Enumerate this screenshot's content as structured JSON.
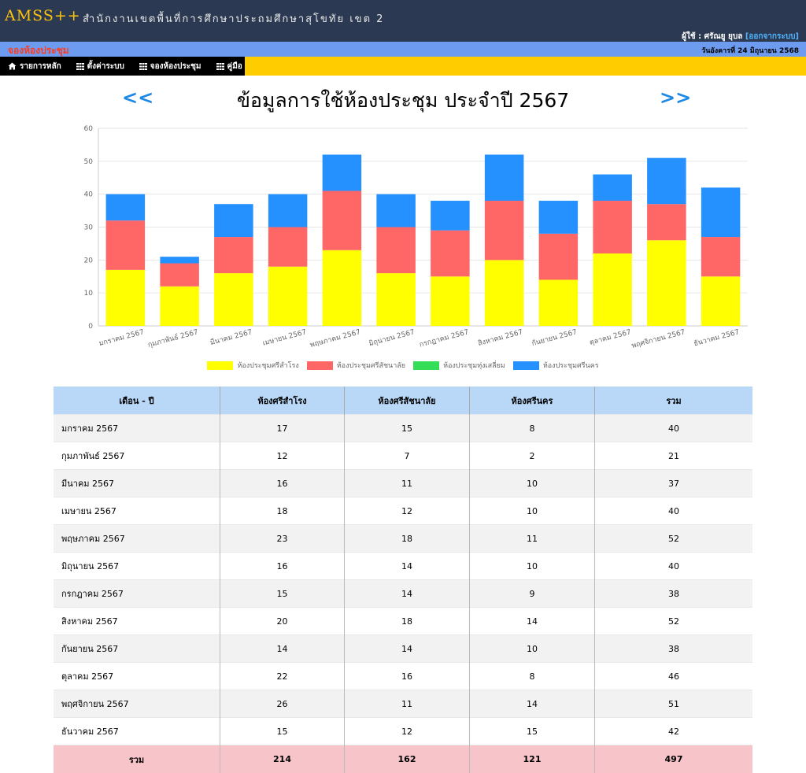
{
  "header": {
    "brand": "AMSS++",
    "org_name": "สำนักงานเขตพื้นที่การศึกษาประถมศึกษาสุโขทัย เขต 2",
    "user_label": "ผู้ใช้ : ศรัณยู ยุบล",
    "logout_label": "[ออกจากระบบ]",
    "module_title": "จองห้องประชุม",
    "date_text": "วันอังคารที่ 24 มิถุนายน 2568"
  },
  "nav": [
    {
      "label": "รายการหลัก",
      "icon": "home-icon"
    },
    {
      "label": "ตั้งค่าระบบ",
      "icon": "grid-icon"
    },
    {
      "label": "จองห้องประชุม",
      "icon": "grid-icon"
    },
    {
      "label": "คู่มือ",
      "icon": "grid-icon"
    }
  ],
  "page": {
    "prev_label": "<<",
    "next_label": ">>",
    "title": "ข้อมูลการใช้ห้องประชุม ประจำปี 2567"
  },
  "chart_data": {
    "type": "bar",
    "stacked": true,
    "categories": [
      "มกราคม 2567",
      "กุมภาพันธ์ 2567",
      "มีนาคม 2567",
      "เมษายน 2567",
      "พฤษภาคม 2567",
      "มิถุนายน 2567",
      "กรกฎาคม 2567",
      "สิงหาคม 2567",
      "กันยายน 2567",
      "ตุลาคม 2567",
      "พฤศจิกายน 2567",
      "ธันวาคม 2567"
    ],
    "series": [
      {
        "name": "ห้องประชุมศรีสำโรง",
        "color": "#ffff00",
        "values": [
          17,
          12,
          16,
          18,
          23,
          16,
          15,
          20,
          14,
          22,
          26,
          15
        ]
      },
      {
        "name": "ห้องประชุมศรีสัชนาลัย",
        "color": "#ff6666",
        "values": [
          15,
          7,
          11,
          12,
          18,
          14,
          14,
          18,
          14,
          16,
          11,
          12
        ]
      },
      {
        "name": "ห้องประชุมทุ่งเสลี่ยม",
        "color": "#33dd55",
        "values": [
          0,
          0,
          0,
          0,
          0,
          0,
          0,
          0,
          0,
          0,
          0,
          0
        ]
      },
      {
        "name": "ห้องประชุมศรีนคร",
        "color": "#2491ff",
        "values": [
          8,
          2,
          10,
          10,
          11,
          10,
          9,
          14,
          10,
          8,
          14,
          15
        ]
      }
    ],
    "ylim": [
      0,
      60
    ],
    "yticks": [
      0,
      10,
      20,
      30,
      40,
      50,
      60
    ],
    "grid": true,
    "legend": "bottom"
  },
  "table": {
    "headers": [
      "เดือน - ปี",
      "ห้องศรีสำโรง",
      "ห้องศรีสัชนาลัย",
      "ห้องศรีนคร",
      "รวม"
    ],
    "rows": [
      [
        "มกราคม 2567",
        "17",
        "15",
        "8",
        "40"
      ],
      [
        "กุมภาพันธ์ 2567",
        "12",
        "7",
        "2",
        "21"
      ],
      [
        "มีนาคม 2567",
        "16",
        "11",
        "10",
        "37"
      ],
      [
        "เมษายน 2567",
        "18",
        "12",
        "10",
        "40"
      ],
      [
        "พฤษภาคม 2567",
        "23",
        "18",
        "11",
        "52"
      ],
      [
        "มิถุนายน 2567",
        "16",
        "14",
        "10",
        "40"
      ],
      [
        "กรกฎาคม 2567",
        "15",
        "14",
        "9",
        "38"
      ],
      [
        "สิงหาคม 2567",
        "20",
        "18",
        "14",
        "52"
      ],
      [
        "กันยายน 2567",
        "14",
        "14",
        "10",
        "38"
      ],
      [
        "ตุลาคม 2567",
        "22",
        "16",
        "8",
        "46"
      ],
      [
        "พฤศจิกายน 2567",
        "26",
        "11",
        "14",
        "51"
      ],
      [
        "ธันวาคม 2567",
        "15",
        "12",
        "15",
        "42"
      ]
    ],
    "total": [
      "รวม",
      "214",
      "162",
      "121",
      "497"
    ]
  }
}
